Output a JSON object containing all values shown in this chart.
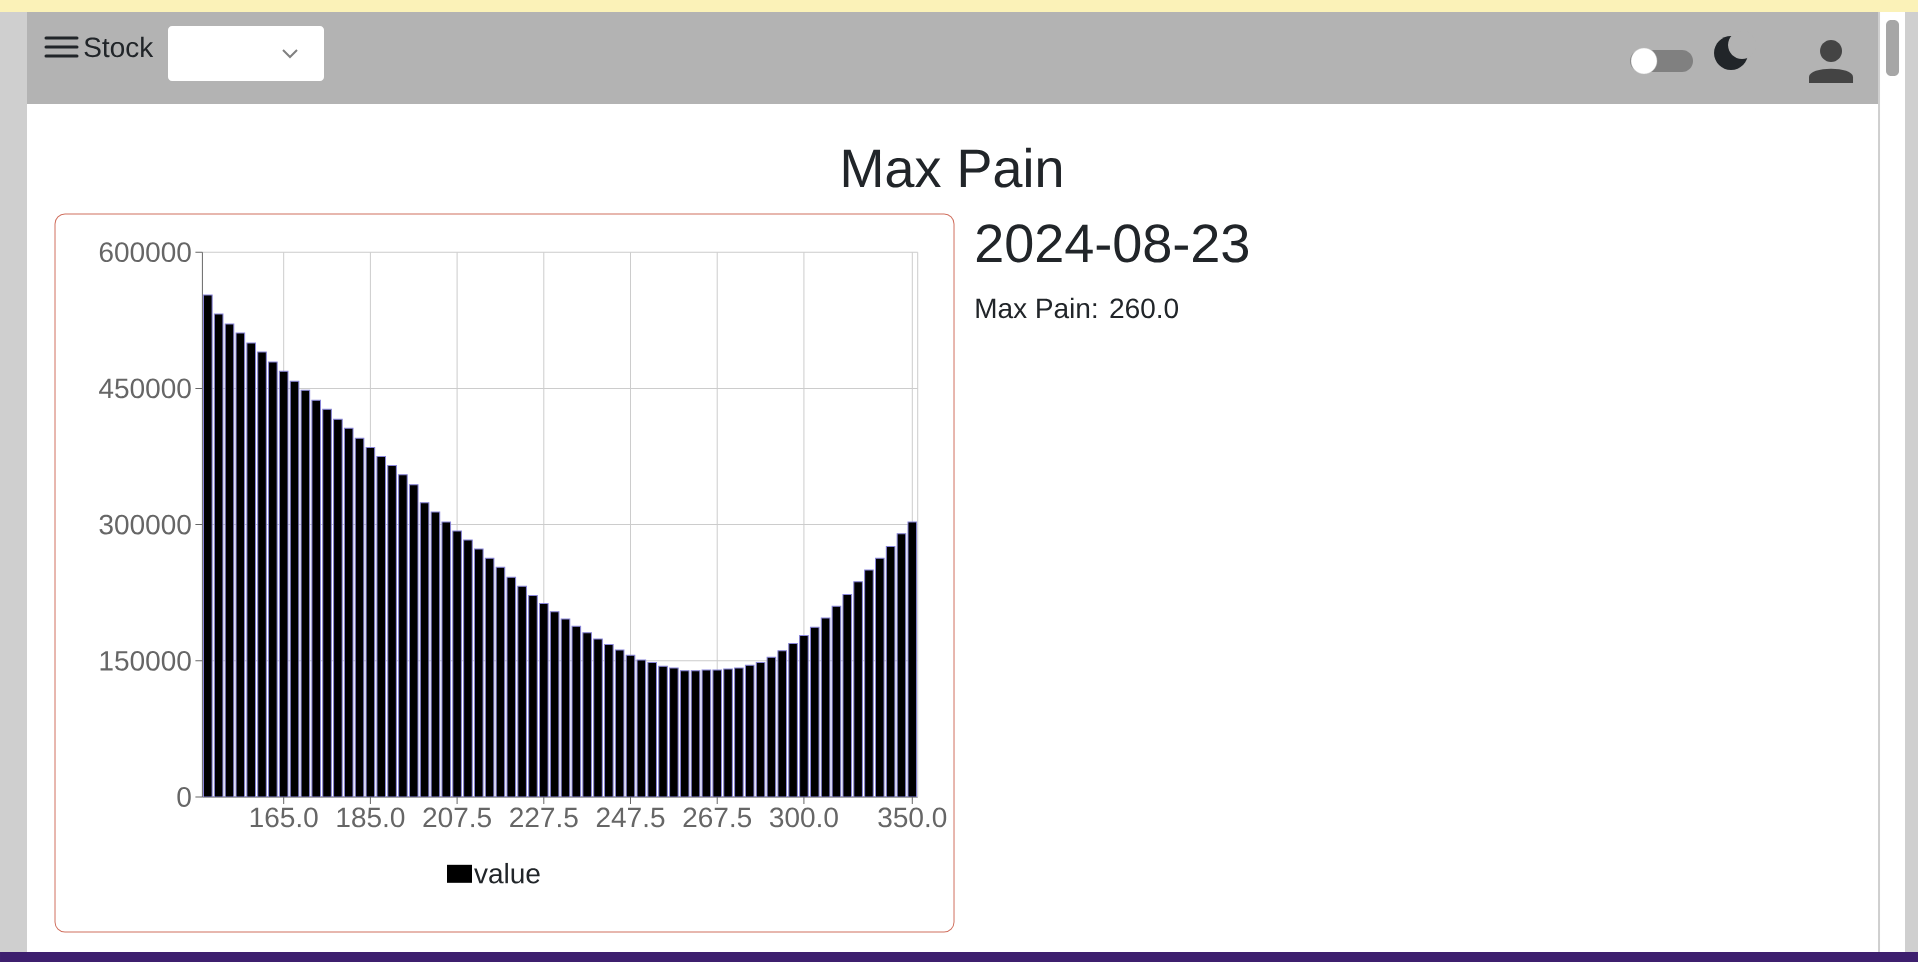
{
  "chart_data": {
    "type": "bar",
    "title": "Max Pain",
    "annotations": [
      "Stock",
      "2024-08-23",
      "Max Pain: 260.0"
    ],
    "categories": [
      null,
      null,
      null,
      null,
      null,
      null,
      null,
      "165.0",
      null,
      null,
      null,
      null,
      null,
      null,
      null,
      "185.0",
      null,
      null,
      null,
      null,
      null,
      null,
      null,
      "207.5",
      null,
      null,
      null,
      null,
      null,
      null,
      null,
      "227.5",
      null,
      null,
      null,
      null,
      null,
      null,
      null,
      "247.5",
      null,
      null,
      null,
      null,
      null,
      null,
      null,
      "267.5",
      null,
      null,
      null,
      null,
      null,
      null,
      null,
      "300.0",
      null,
      null,
      null,
      null,
      null,
      null,
      null,
      null,
      null,
      "350.0"
    ],
    "series": [
      {
        "name": "value",
        "color": "#000000",
        "values": [
          553000,
          532000,
          521000,
          511000,
          500000,
          490000,
          479000,
          469000,
          458000,
          448000,
          437000,
          427000,
          416000,
          406000,
          395000,
          385000,
          375000,
          365000,
          355000,
          344000,
          324000,
          314000,
          303000,
          293000,
          283000,
          273000,
          263000,
          253000,
          242000,
          232000,
          222000,
          213000,
          204000,
          196000,
          188000,
          181000,
          174000,
          168000,
          162000,
          156000,
          151000,
          148000,
          144000,
          142000,
          139000,
          139000,
          140000,
          140000,
          141000,
          142000,
          145000,
          148000,
          154000,
          161000,
          169000,
          178000,
          187000,
          197000,
          210000,
          223000,
          237000,
          250000,
          263000,
          276000,
          290000,
          303000
        ]
      }
    ],
    "ylim": [
      0,
      600000
    ],
    "yticks": [
      0,
      150000,
      300000,
      450000,
      600000
    ],
    "grid": true,
    "legend": "bottom"
  }
}
